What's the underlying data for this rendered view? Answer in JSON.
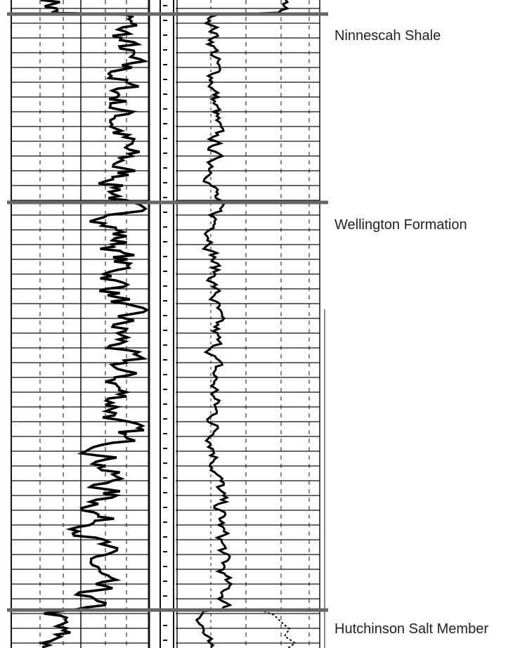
{
  "labels": [
    "Ninnescah Shale",
    "Wellington Formation",
    "Hutchinson Salt Member"
  ]
}
